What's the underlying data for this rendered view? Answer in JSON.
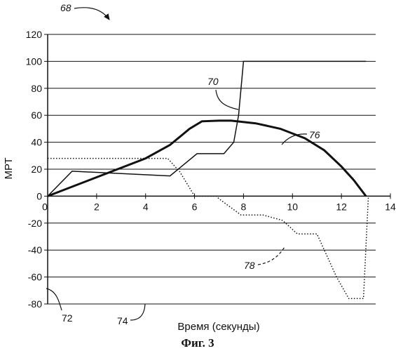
{
  "caption": "Фиг. 3",
  "chart_data": {
    "type": "line",
    "xlabel": "Время (секунды)",
    "ylabel": "МРТ",
    "xlim": [
      0,
      14
    ],
    "ylim": [
      -80,
      120
    ],
    "x_ticks": [
      0,
      2,
      4,
      6,
      8,
      10,
      12,
      14
    ],
    "y_ticks": [
      120,
      100,
      80,
      60,
      40,
      20,
      0,
      -20,
      -40,
      -60,
      -80
    ],
    "grid": "horizontal",
    "series": [
      {
        "ref": "70",
        "style": "thin-solid",
        "points": [
          [
            0,
            0
          ],
          [
            1,
            18.5
          ],
          [
            5,
            15
          ],
          [
            6.1,
            31.5
          ],
          [
            7.2,
            31.5
          ],
          [
            7.6,
            40
          ],
          [
            7.8,
            60
          ],
          [
            7.9,
            80
          ],
          [
            8,
            100
          ],
          [
            13,
            100
          ]
        ]
      },
      {
        "ref": "76",
        "style": "thick-solid",
        "points": [
          [
            0,
            0
          ],
          [
            2,
            14
          ],
          [
            4,
            28
          ],
          [
            5,
            38
          ],
          [
            5.8,
            50
          ],
          [
            6.3,
            55.5
          ],
          [
            7,
            56
          ],
          [
            7.5,
            56
          ],
          [
            8.5,
            54
          ],
          [
            9.5,
            50
          ],
          [
            10.5,
            43
          ],
          [
            11.3,
            34
          ],
          [
            12,
            22
          ],
          [
            12.5,
            12
          ],
          [
            13,
            0
          ]
        ]
      },
      {
        "ref": "78",
        "style": "dotted",
        "points": [
          [
            0,
            28
          ],
          [
            4.9,
            28
          ],
          [
            5.4,
            18
          ],
          [
            6,
            0
          ],
          [
            6.9,
            0
          ],
          [
            7,
            -2
          ],
          [
            7.9,
            -14
          ],
          [
            8.8,
            -14
          ],
          [
            9.6,
            -18
          ],
          [
            10.2,
            -28
          ],
          [
            11,
            -28
          ],
          [
            11.3,
            -40
          ],
          [
            11.8,
            -60
          ],
          [
            12.3,
            -76
          ],
          [
            12.9,
            -76
          ],
          [
            13.1,
            0
          ]
        ]
      }
    ],
    "annotations": {
      "figure_ref": "68",
      "y_axis_ref": "72",
      "x_axis_ref": "74",
      "line_70": "70",
      "line_76": "76",
      "line_78": "78"
    }
  }
}
